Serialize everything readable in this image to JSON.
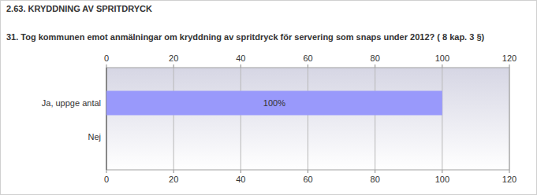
{
  "chart_data": {
    "type": "bar",
    "orientation": "horizontal",
    "subtitle": "2.63. KRYDDNING AV SPRITDRYCK",
    "title": "31. Tog kommunen emot anmälningar om kryddning av spritdryck för servering som snaps under 2012? ( 8 kap. 3 §)",
    "categories": [
      "Ja, uppge antal",
      "Nej"
    ],
    "values": [
      100,
      0
    ],
    "value_labels": [
      "100%",
      null
    ],
    "data_labels": true,
    "color": "#9999fb",
    "xlim": [
      0,
      120
    ],
    "xticks": [
      0,
      20,
      40,
      60,
      80,
      100,
      120
    ],
    "grid": true
  }
}
